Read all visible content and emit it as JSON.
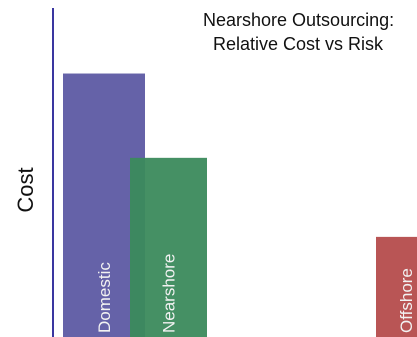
{
  "chart_data": {
    "type": "bar",
    "title_lines": [
      "Nearshore Outsourcing:",
      "Relative Cost vs Risk"
    ],
    "ylabel": "Cost",
    "categories": [
      "Domestic",
      "Nearshore",
      "Offshore"
    ],
    "values": [
      100,
      68,
      38
    ],
    "ylim": [
      0,
      115
    ],
    "colors": [
      "#6562a8",
      "#3b8a5c",
      "#b95555"
    ],
    "axis_color": "#3a36a0",
    "grid": false,
    "legend": "none"
  }
}
